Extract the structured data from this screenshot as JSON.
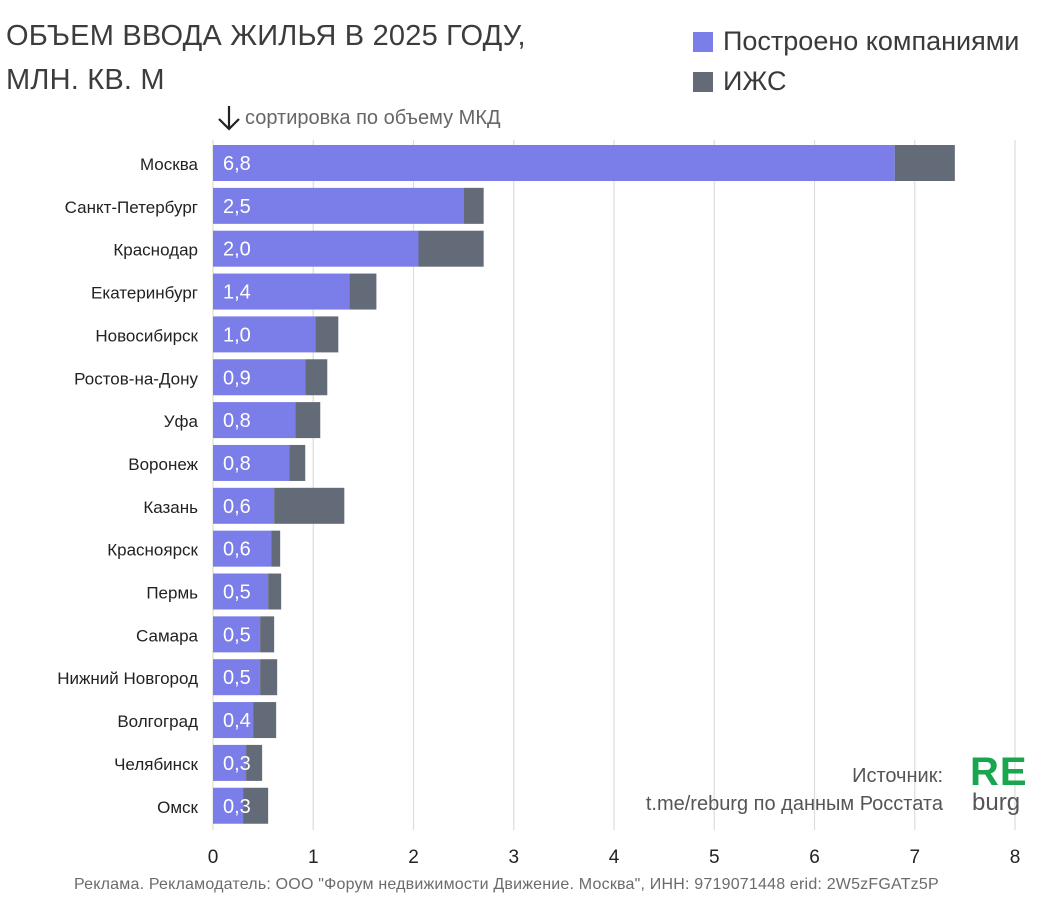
{
  "title_line1": "ОБЪЕМ ВВОДА ЖИЛЬЯ В 2025 ГОДУ,",
  "title_line2": "МЛН. КВ. М",
  "sort_note": "сортировка по объему МКД",
  "source_line1": "Источник:",
  "source_line2": "t.me/reburg по данным Росстата",
  "logo_top": "RE",
  "logo_bottom": "burg",
  "ad_text": "Реклама. Рекламодатель: ООО \"Форум недвижимости Движение. Москва\", ИНН: 9719071448 erid: 2W5zFGATz5P",
  "colors": {
    "companies": "#7b7ee8",
    "izhs": "#636b78",
    "grid": "#dcdcdc",
    "logo": "#1aa64e"
  },
  "chart_data": {
    "type": "bar",
    "orientation": "horizontal",
    "stacked": true,
    "title": "ОБЪЕМ ВВОДА ЖИЛЬЯ В 2025 ГОДУ, МЛН. КВ. М",
    "xlim": [
      0,
      8
    ],
    "xticks": [
      0,
      1,
      2,
      3,
      4,
      5,
      6,
      7,
      8
    ],
    "grid": "vertical",
    "legend": "top-right",
    "categories": [
      "Москва",
      "Санкт-Петербург",
      "Краснодар",
      "Екатеринбург",
      "Новосибирск",
      "Ростов-на-Дону",
      "Уфа",
      "Воронеж",
      "Казань",
      "Красноярск",
      "Пермь",
      "Самара",
      "Нижний Новгород",
      "Волгоград",
      "Челябинск",
      "Омск"
    ],
    "data_labels": [
      "6,8",
      "2,5",
      "2,0",
      "1,4",
      "1,0",
      "0,9",
      "0,8",
      "0,8",
      "0,6",
      "0,6",
      "0,5",
      "0,5",
      "0,5",
      "0,4",
      "0,3",
      "0,3"
    ],
    "series": [
      {
        "name": "Построено компаниями",
        "values": [
          6.8,
          2.5,
          2.05,
          1.36,
          1.02,
          0.92,
          0.82,
          0.76,
          0.61,
          0.58,
          0.55,
          0.47,
          0.47,
          0.4,
          0.33,
          0.3
        ]
      },
      {
        "name": "ИЖС",
        "values": [
          0.6,
          0.2,
          0.65,
          0.27,
          0.23,
          0.22,
          0.25,
          0.16,
          0.7,
          0.09,
          0.13,
          0.14,
          0.17,
          0.23,
          0.16,
          0.25
        ]
      }
    ]
  }
}
